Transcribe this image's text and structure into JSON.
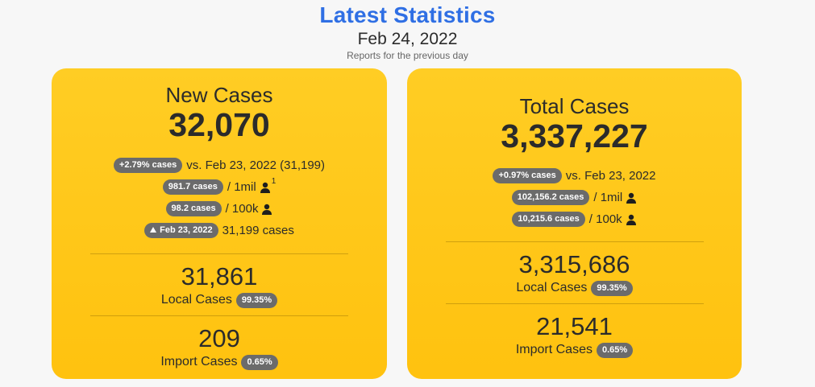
{
  "header": {
    "title": "Latest Statistics",
    "date": "Feb 24, 2022",
    "subtitle": "Reports for the previous day"
  },
  "new_cases": {
    "title": "New Cases",
    "value": "32,070",
    "change_pill": "+2.79% cases",
    "change_text": "vs. Feb 23, 2022 (31,199)",
    "per_mil_pill": "981.7 cases",
    "per_mil_text": "/ 1mil",
    "per_mil_sup": "1",
    "per_100k_pill": "98.2 cases",
    "per_100k_text": "/ 100k",
    "prev_pill": "Feb 23, 2022",
    "prev_text": "31,199 cases",
    "local_value": "31,861",
    "local_label": "Local Cases",
    "local_pill": "99.35%",
    "import_value": "209",
    "import_label": "Import Cases",
    "import_pill": "0.65%"
  },
  "total_cases": {
    "title": "Total Cases",
    "value": "3,337,227",
    "change_pill": "+0.97% cases",
    "change_text": "vs. Feb 23, 2022",
    "per_mil_pill": "102,156.2 cases",
    "per_mil_text": "/ 1mil",
    "per_100k_pill": "10,215.6 cases",
    "per_100k_text": "/ 100k",
    "local_value": "3,315,686",
    "local_label": "Local Cases",
    "local_pill": "99.35%",
    "import_value": "21,541",
    "import_label": "Import Cases",
    "import_pill": "0.65%"
  },
  "icons": {
    "person": "person-icon",
    "up_arrow": "triangle-up-icon"
  },
  "colors": {
    "title_blue": "#2f6fe4",
    "card_yellow": "#ffc814",
    "pill_gray": "#6b6b6b"
  }
}
